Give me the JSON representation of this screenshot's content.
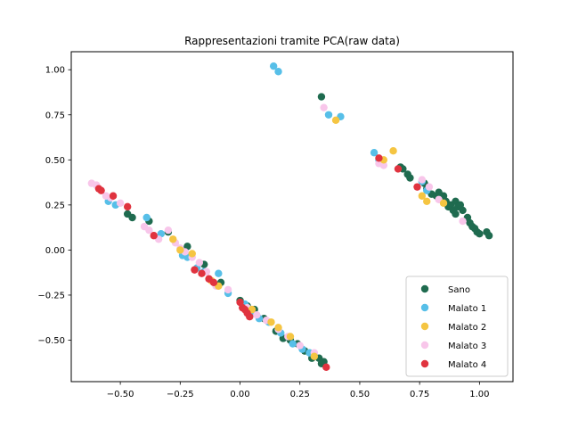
{
  "chart_data": {
    "type": "scatter",
    "title": "Rappresentazioni tramite PCA(raw data)",
    "xlabel": "",
    "ylabel": "",
    "xlim": [
      -0.705,
      1.14
    ],
    "ylim": [
      -0.73,
      1.1
    ],
    "x_ticks": [
      -0.5,
      -0.25,
      0.0,
      0.25,
      0.5,
      0.75,
      1.0
    ],
    "x_tick_labels": [
      "−0.50",
      "−0.25",
      "0.00",
      "0.25",
      "0.50",
      "0.75",
      "1.00"
    ],
    "y_ticks": [
      -0.5,
      -0.25,
      0.0,
      0.25,
      0.5,
      0.75,
      1.0
    ],
    "y_tick_labels": [
      "−0.50",
      "−0.25",
      "0.00",
      "0.25",
      "0.50",
      "0.75",
      "1.00"
    ],
    "grid": false,
    "legend_position": "bottom-right",
    "series": [
      {
        "name": "Sano",
        "color": "#1f6b4f",
        "points": [
          [
            -0.45,
            0.18
          ],
          [
            -0.47,
            0.2
          ],
          [
            -0.38,
            0.16
          ],
          [
            -0.3,
            0.1
          ],
          [
            -0.22,
            0.02
          ],
          [
            -0.15,
            -0.08
          ],
          [
            -0.08,
            -0.18
          ],
          [
            0.0,
            -0.28
          ],
          [
            0.03,
            -0.31
          ],
          [
            0.06,
            -0.33
          ],
          [
            0.1,
            -0.38
          ],
          [
            0.15,
            -0.45
          ],
          [
            0.18,
            -0.49
          ],
          [
            0.21,
            -0.5
          ],
          [
            0.24,
            -0.52
          ],
          [
            0.27,
            -0.56
          ],
          [
            0.3,
            -0.6
          ],
          [
            0.33,
            -0.6
          ],
          [
            0.34,
            -0.63
          ],
          [
            0.35,
            -0.62
          ],
          [
            0.34,
            0.85
          ],
          [
            0.67,
            0.46
          ],
          [
            0.68,
            0.45
          ],
          [
            0.7,
            0.42
          ],
          [
            0.71,
            0.4
          ],
          [
            0.77,
            0.37
          ],
          [
            0.78,
            0.34
          ],
          [
            0.8,
            0.31
          ],
          [
            0.82,
            0.3
          ],
          [
            0.83,
            0.32
          ],
          [
            0.84,
            0.28
          ],
          [
            0.85,
            0.3
          ],
          [
            0.86,
            0.27
          ],
          [
            0.87,
            0.24
          ],
          [
            0.88,
            0.25
          ],
          [
            0.89,
            0.22
          ],
          [
            0.9,
            0.2
          ],
          [
            0.9,
            0.27
          ],
          [
            0.91,
            0.24
          ],
          [
            0.92,
            0.25
          ],
          [
            0.93,
            0.22
          ],
          [
            0.95,
            0.18
          ],
          [
            0.96,
            0.15
          ],
          [
            0.97,
            0.13
          ],
          [
            0.98,
            0.12
          ],
          [
            0.99,
            0.1
          ],
          [
            1.0,
            0.09
          ],
          [
            1.03,
            0.1
          ],
          [
            1.04,
            0.08
          ]
        ]
      },
      {
        "name": "Malato 1",
        "color": "#57bfe8",
        "points": [
          [
            -0.55,
            0.27
          ],
          [
            -0.52,
            0.25
          ],
          [
            -0.39,
            0.18
          ],
          [
            -0.33,
            0.09
          ],
          [
            -0.24,
            -0.03
          ],
          [
            -0.22,
            -0.04
          ],
          [
            -0.18,
            -0.1
          ],
          [
            -0.15,
            -0.12
          ],
          [
            -0.09,
            -0.13
          ],
          [
            -0.05,
            -0.24
          ],
          [
            0.02,
            -0.3
          ],
          [
            0.05,
            -0.35
          ],
          [
            0.08,
            -0.38
          ],
          [
            0.12,
            -0.4
          ],
          [
            0.17,
            -0.46
          ],
          [
            0.22,
            -0.52
          ],
          [
            0.26,
            -0.55
          ],
          [
            0.29,
            -0.57
          ],
          [
            0.14,
            1.02
          ],
          [
            0.16,
            0.99
          ],
          [
            0.37,
            0.75
          ],
          [
            0.42,
            0.74
          ],
          [
            0.56,
            0.54
          ],
          [
            0.58,
            0.5
          ],
          [
            0.76,
            0.38
          ],
          [
            0.78,
            0.33
          ]
        ]
      },
      {
        "name": "Malato 3",
        "color": "#f8c6ea",
        "points": [
          [
            -0.62,
            0.37
          ],
          [
            -0.6,
            0.36
          ],
          [
            -0.58,
            0.33
          ],
          [
            -0.56,
            0.3
          ],
          [
            -0.54,
            0.29
          ],
          [
            -0.5,
            0.26
          ],
          [
            -0.4,
            0.13
          ],
          [
            -0.38,
            0.11
          ],
          [
            -0.36,
            0.08
          ],
          [
            -0.34,
            0.06
          ],
          [
            -0.3,
            0.11
          ],
          [
            -0.27,
            0.04
          ],
          [
            -0.25,
            0.01
          ],
          [
            -0.23,
            -0.01
          ],
          [
            -0.2,
            -0.04
          ],
          [
            -0.17,
            -0.07
          ],
          [
            -0.14,
            -0.12
          ],
          [
            -0.1,
            -0.2
          ],
          [
            -0.05,
            -0.22
          ],
          [
            0.03,
            -0.32
          ],
          [
            0.07,
            -0.36
          ],
          [
            0.11,
            -0.39
          ],
          [
            0.16,
            -0.44
          ],
          [
            0.2,
            -0.48
          ],
          [
            0.25,
            -0.53
          ],
          [
            0.31,
            -0.57
          ],
          [
            0.35,
            0.79
          ],
          [
            0.58,
            0.48
          ],
          [
            0.6,
            0.47
          ],
          [
            0.76,
            0.39
          ],
          [
            0.79,
            0.35
          ],
          [
            0.83,
            0.28
          ],
          [
            0.93,
            0.16
          ]
        ]
      },
      {
        "name": "Malato 2",
        "color": "#f5c542",
        "points": [
          [
            -0.28,
            0.06
          ],
          [
            -0.25,
            0.0
          ],
          [
            -0.2,
            -0.02
          ],
          [
            -0.12,
            -0.17
          ],
          [
            -0.09,
            -0.2
          ],
          [
            0.05,
            -0.33
          ],
          [
            0.13,
            -0.4
          ],
          [
            0.16,
            -0.43
          ],
          [
            0.21,
            -0.48
          ],
          [
            0.31,
            -0.59
          ],
          [
            0.4,
            0.72
          ],
          [
            0.6,
            0.5
          ],
          [
            0.64,
            0.55
          ],
          [
            0.76,
            0.3
          ],
          [
            0.78,
            0.27
          ],
          [
            0.85,
            0.26
          ]
        ]
      },
      {
        "name": "Malato 4",
        "color": "#e0333f",
        "points": [
          [
            -0.59,
            0.34
          ],
          [
            -0.58,
            0.33
          ],
          [
            -0.53,
            0.3
          ],
          [
            -0.47,
            0.24
          ],
          [
            -0.36,
            0.08
          ],
          [
            -0.19,
            -0.11
          ],
          [
            -0.16,
            -0.13
          ],
          [
            -0.13,
            -0.16
          ],
          [
            -0.11,
            -0.18
          ],
          [
            0.0,
            -0.29
          ],
          [
            0.01,
            -0.32
          ],
          [
            0.02,
            -0.33
          ],
          [
            0.03,
            -0.35
          ],
          [
            0.04,
            -0.37
          ],
          [
            0.36,
            -0.65
          ],
          [
            0.58,
            0.51
          ],
          [
            0.66,
            0.45
          ],
          [
            0.74,
            0.35
          ]
        ]
      }
    ],
    "legend_order": [
      "Sano",
      "Malato 1",
      "Malato 2",
      "Malato 3",
      "Malato 4"
    ]
  }
}
